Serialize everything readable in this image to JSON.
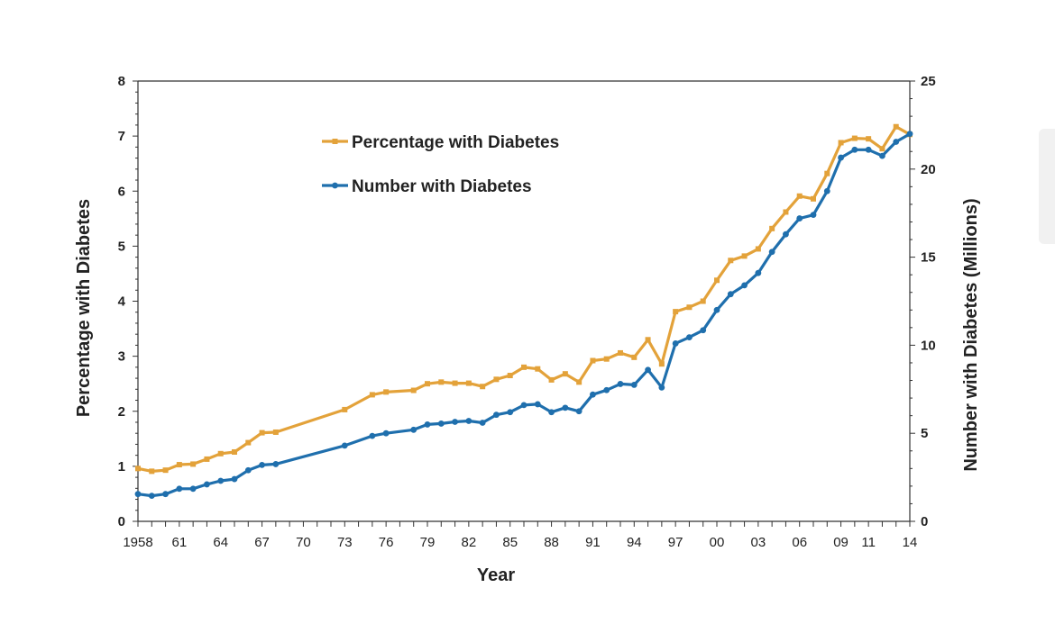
{
  "chart_data": {
    "type": "line",
    "xlabel": "Year",
    "ylabel_left": "Percentage with Diabetes",
    "ylabel_right": "Number with Diabetes (Millions)",
    "ylim_left": [
      0,
      8
    ],
    "ylim_right": [
      0,
      25
    ],
    "yticks_left": [
      "0",
      "1",
      "2",
      "3",
      "4",
      "5",
      "6",
      "7",
      "8"
    ],
    "yticks_right": [
      "0",
      "5",
      "10",
      "15",
      "20",
      "25"
    ],
    "xlim": [
      1958,
      2014
    ],
    "xtick_labels": [
      {
        "year": 1958,
        "label": "1958"
      },
      {
        "year": 1961,
        "label": "61"
      },
      {
        "year": 1964,
        "label": "64"
      },
      {
        "year": 1967,
        "label": "67"
      },
      {
        "year": 1970,
        "label": "70"
      },
      {
        "year": 1973,
        "label": "73"
      },
      {
        "year": 1976,
        "label": "76"
      },
      {
        "year": 1979,
        "label": "79"
      },
      {
        "year": 1982,
        "label": "82"
      },
      {
        "year": 1985,
        "label": "85"
      },
      {
        "year": 1988,
        "label": "88"
      },
      {
        "year": 1991,
        "label": "91"
      },
      {
        "year": 1994,
        "label": "94"
      },
      {
        "year": 1997,
        "label": "97"
      },
      {
        "year": 2000,
        "label": "00"
      },
      {
        "year": 2003,
        "label": "03"
      },
      {
        "year": 2006,
        "label": "06"
      },
      {
        "year": 2009,
        "label": "09"
      },
      {
        "year": 2011,
        "label": "11"
      },
      {
        "year": 2014,
        "label": "14"
      }
    ],
    "legend_position": "top-left",
    "grid": false,
    "series": [
      {
        "name": "Percentage with Diabetes",
        "axis": "left",
        "color": "#e3a23a",
        "points": [
          [
            1958,
            0.96
          ],
          [
            1959,
            0.91
          ],
          [
            1960,
            0.93
          ],
          [
            1961,
            1.03
          ],
          [
            1962,
            1.04
          ],
          [
            1963,
            1.13
          ],
          [
            1964,
            1.23
          ],
          [
            1965,
            1.26
          ],
          [
            1966,
            1.43
          ],
          [
            1967,
            1.61
          ],
          [
            1968,
            1.62
          ],
          [
            1973,
            2.03
          ],
          [
            1975,
            2.3
          ],
          [
            1976,
            2.35
          ],
          [
            1978,
            2.38
          ],
          [
            1979,
            2.5
          ],
          [
            1980,
            2.53
          ],
          [
            1981,
            2.51
          ],
          [
            1982,
            2.51
          ],
          [
            1983,
            2.45
          ],
          [
            1984,
            2.58
          ],
          [
            1985,
            2.65
          ],
          [
            1986,
            2.8
          ],
          [
            1987,
            2.77
          ],
          [
            1988,
            2.57
          ],
          [
            1989,
            2.68
          ],
          [
            1990,
            2.53
          ],
          [
            1991,
            2.92
          ],
          [
            1992,
            2.95
          ],
          [
            1993,
            3.06
          ],
          [
            1994,
            2.98
          ],
          [
            1995,
            3.3
          ],
          [
            1996,
            2.86
          ],
          [
            1997,
            3.81
          ],
          [
            1998,
            3.89
          ],
          [
            1999,
            4.0
          ],
          [
            2000,
            4.38
          ],
          [
            2001,
            4.74
          ],
          [
            2002,
            4.82
          ],
          [
            2003,
            4.95
          ],
          [
            2004,
            5.32
          ],
          [
            2005,
            5.62
          ],
          [
            2006,
            5.91
          ],
          [
            2007,
            5.86
          ],
          [
            2008,
            6.32
          ],
          [
            2009,
            6.88
          ],
          [
            2010,
            6.96
          ],
          [
            2011,
            6.95
          ],
          [
            2012,
            6.77
          ],
          [
            2013,
            7.17
          ],
          [
            2014,
            7.03
          ]
        ]
      },
      {
        "name": "Number with Diabetes",
        "axis": "right",
        "color": "#1f6fad",
        "points": [
          [
            1958,
            1.55
          ],
          [
            1959,
            1.45
          ],
          [
            1960,
            1.55
          ],
          [
            1961,
            1.85
          ],
          [
            1962,
            1.85
          ],
          [
            1963,
            2.1
          ],
          [
            1964,
            2.3
          ],
          [
            1965,
            2.4
          ],
          [
            1966,
            2.9
          ],
          [
            1967,
            3.2
          ],
          [
            1968,
            3.25
          ],
          [
            1973,
            4.3
          ],
          [
            1975,
            4.85
          ],
          [
            1976,
            5.0
          ],
          [
            1978,
            5.2
          ],
          [
            1979,
            5.5
          ],
          [
            1980,
            5.55
          ],
          [
            1981,
            5.65
          ],
          [
            1982,
            5.7
          ],
          [
            1983,
            5.6
          ],
          [
            1984,
            6.05
          ],
          [
            1985,
            6.2
          ],
          [
            1986,
            6.6
          ],
          [
            1987,
            6.65
          ],
          [
            1988,
            6.2
          ],
          [
            1989,
            6.45
          ],
          [
            1990,
            6.25
          ],
          [
            1991,
            7.2
          ],
          [
            1992,
            7.45
          ],
          [
            1993,
            7.8
          ],
          [
            1994,
            7.75
          ],
          [
            1995,
            8.6
          ],
          [
            1996,
            7.6
          ],
          [
            1997,
            10.1
          ],
          [
            1998,
            10.45
          ],
          [
            1999,
            10.85
          ],
          [
            2000,
            12.0
          ],
          [
            2001,
            12.9
          ],
          [
            2002,
            13.4
          ],
          [
            2003,
            14.1
          ],
          [
            2004,
            15.3
          ],
          [
            2005,
            16.3
          ],
          [
            2006,
            17.2
          ],
          [
            2007,
            17.4
          ],
          [
            2008,
            18.75
          ],
          [
            2009,
            20.65
          ],
          [
            2010,
            21.1
          ],
          [
            2011,
            21.1
          ],
          [
            2012,
            20.75
          ],
          [
            2013,
            21.55
          ],
          [
            2014,
            22.0
          ]
        ]
      }
    ]
  },
  "ui": {
    "background": "#ffffff",
    "scroll_nub_color": "#f1f1f1"
  }
}
